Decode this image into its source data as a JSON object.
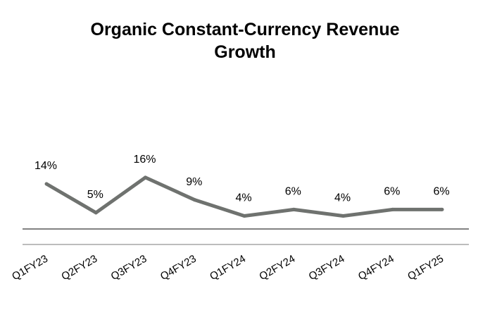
{
  "chart_data": {
    "type": "line",
    "title": "Organic Constant-Currency Revenue\nGrowth",
    "xlabel": "",
    "ylabel": "",
    "categories": [
      "Q1FY23",
      "Q2FY23",
      "Q3FY23",
      "Q4FY23",
      "Q1FY24",
      "Q2FY24",
      "Q3FY24",
      "Q4FY24",
      "Q1FY25"
    ],
    "series": [
      {
        "values": [
          14,
          5,
          16,
          9,
          4,
          6,
          4,
          6,
          6
        ],
        "data_labels": [
          "14%",
          "5%",
          "16%",
          "9%",
          "4%",
          "6%",
          "4%",
          "6%",
          "6%"
        ],
        "color": "#6f726f"
      }
    ],
    "ylim": [
      0,
      16
    ],
    "grid": false,
    "legend": "none",
    "axis_color": "#595959",
    "axis_color_secondary": "#a6a6a6"
  }
}
